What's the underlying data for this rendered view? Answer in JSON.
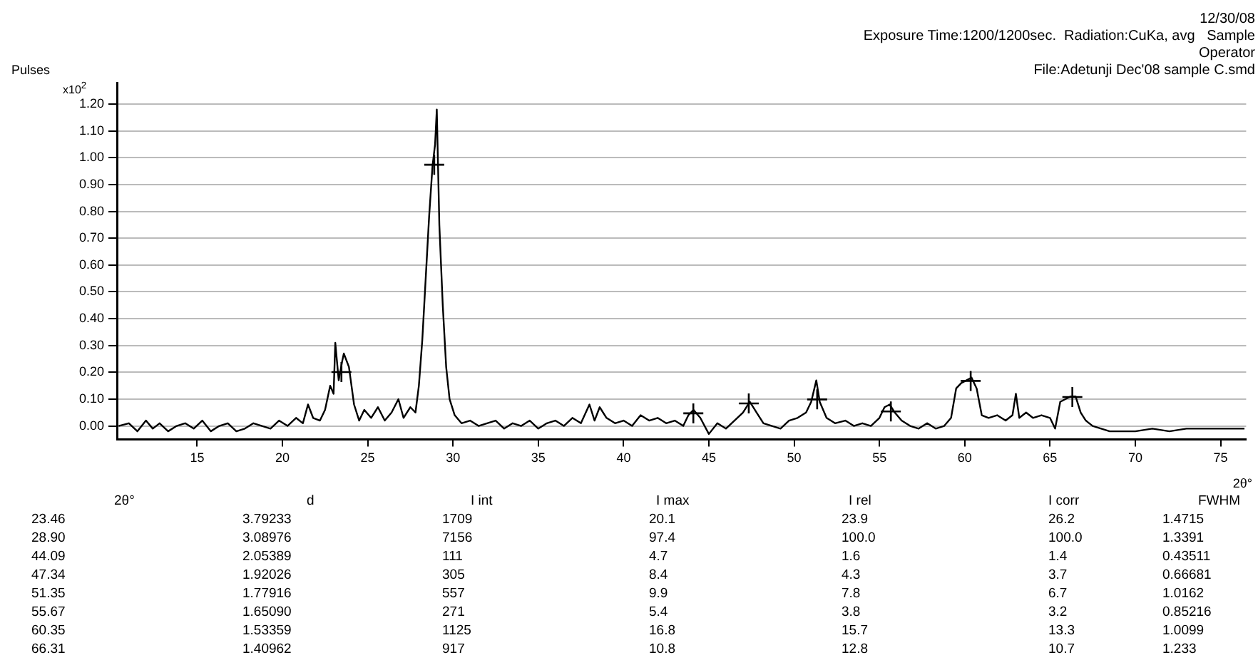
{
  "chart_data": {
    "type": "line",
    "title": "12/30/08",
    "subtitle": "Exposure Time:1200/1200sec.  Radiation:CuKa, avg   Sample\nOperator\nFile:Adetunji Dec'08 sample C.smd",
    "xlabel": "2θ°",
    "ylabel": "Pulses",
    "annotations": [
      "x10$^{2}$",
      "2θ°",
      "d",
      "I int",
      "I max",
      "I rel",
      "I corr",
      "FWHM",
      "23.46",
      "3.79233",
      "1709",
      "20.1",
      "23.9",
      "26.2",
      "1.4715",
      "28.90",
      "3.08976",
      "7156",
      "97.4",
      "100.0",
      "100.0",
      "1.3391",
      "44.09",
      "2.05389",
      "111",
      "4.7",
      "1.6",
      "1.4",
      "0.43511",
      "47.34",
      "1.92026",
      "305",
      "8.4",
      "4.3",
      "3.7",
      "0.66681",
      "51.35",
      "1.77916",
      "557",
      "9.9",
      "7.8",
      "6.7",
      "1.0162",
      "55.67",
      "1.65090",
      "271",
      "5.4",
      "3.8",
      "3.2",
      "0.85216",
      "60.35",
      "1.53359",
      "1125",
      "16.8",
      "15.7",
      "13.3",
      "1.0099",
      "66.31",
      "1.40962",
      "917",
      "10.8",
      "12.8",
      "10.7",
      "1.233"
    ],
    "xlim": [
      10.3,
      76.5
    ],
    "xticks": [
      15,
      20,
      25,
      30,
      35,
      40,
      45,
      50,
      55,
      60,
      65,
      70,
      75
    ],
    "ylim": [
      -0.05,
      1.28
    ],
    "yticks": [
      {
        "value": 0,
        "label": "0.00"
      },
      {
        "value": 0.1,
        "label": "0.10"
      },
      {
        "value": 0.2,
        "label": "0.20"
      },
      {
        "value": 0.3,
        "label": "0.30"
      },
      {
        "value": 0.4,
        "label": "0.40"
      },
      {
        "value": 0.5,
        "label": "0.50"
      },
      {
        "value": 0.6,
        "label": "0.60"
      },
      {
        "value": 0.7,
        "label": "0.70"
      },
      {
        "value": 0.8,
        "label": "0.80"
      },
      {
        "value": 0.9,
        "label": "0.90"
      },
      {
        "value": 1.0,
        "label": "1.00"
      },
      {
        "value": 1.1,
        "label": "1.10"
      },
      {
        "value": 1.2,
        "label": "1.20"
      }
    ],
    "grid": "y",
    "legend": false,
    "series": [
      {
        "color": "#000000",
        "marker": "none",
        "x": [
          10.4,
          11,
          11.5,
          12,
          12.4,
          12.8,
          13.3,
          13.8,
          14.3,
          14.8,
          15.3,
          15.8,
          16.3,
          16.8,
          17.3,
          17.8,
          18.3,
          18.8,
          19.3,
          19.8,
          20.3,
          20.8,
          21.2,
          21.5,
          21.8,
          22.2,
          22.5,
          22.8,
          23.0,
          23.1,
          23.3,
          23.5,
          23.6,
          23.9,
          24.2,
          24.5,
          24.8,
          25.2,
          25.6,
          26.0,
          26.4,
          26.8,
          27.1,
          27.5,
          27.8,
          28.0,
          28.2,
          28.4,
          28.6,
          28.8,
          28.95,
          29.05,
          29.2,
          29.4,
          29.6,
          29.8,
          30.1,
          30.5,
          31,
          31.5,
          32,
          32.5,
          33,
          33.5,
          34,
          34.5,
          35,
          35.5,
          36,
          36.5,
          37,
          37.5,
          38,
          38.3,
          38.6,
          39,
          39.5,
          40,
          40.5,
          41,
          41.5,
          42,
          42.5,
          43,
          43.5,
          43.8,
          44.1,
          44.5,
          45,
          45.5,
          46,
          46.5,
          47,
          47.4,
          47.8,
          48.2,
          48.7,
          49.2,
          49.7,
          50.2,
          50.7,
          51,
          51.3,
          51.5,
          51.9,
          52.4,
          53,
          53.5,
          54,
          54.5,
          55,
          55.3,
          55.6,
          55.9,
          56.3,
          56.8,
          57.3,
          57.8,
          58.3,
          58.8,
          59.2,
          59.5,
          59.8,
          60.1,
          60.4,
          60.7,
          61,
          61.4,
          61.9,
          62.4,
          62.8,
          63.0,
          63.2,
          63.6,
          64,
          64.5,
          65,
          65.3,
          65.6,
          65.9,
          66.2,
          66.5,
          66.8,
          67.1,
          67.5,
          68,
          68.5,
          69,
          70,
          71,
          72,
          73,
          74,
          75,
          76.4
        ],
        "values": [
          0.0,
          0.01,
          -0.02,
          0.02,
          -0.01,
          0.01,
          -0.02,
          0.0,
          0.01,
          -0.01,
          0.02,
          -0.02,
          0.0,
          0.01,
          -0.02,
          -0.01,
          0.01,
          0.0,
          -0.01,
          0.02,
          0.0,
          0.03,
          0.01,
          0.08,
          0.03,
          0.02,
          0.06,
          0.15,
          0.12,
          0.31,
          0.17,
          0.24,
          0.27,
          0.22,
          0.08,
          0.02,
          0.06,
          0.03,
          0.07,
          0.02,
          0.05,
          0.1,
          0.03,
          0.07,
          0.05,
          0.15,
          0.32,
          0.55,
          0.78,
          0.97,
          1.05,
          1.18,
          0.75,
          0.45,
          0.22,
          0.1,
          0.04,
          0.01,
          0.02,
          0.0,
          0.01,
          0.02,
          -0.01,
          0.01,
          0.0,
          0.02,
          -0.01,
          0.01,
          0.02,
          0.0,
          0.03,
          0.01,
          0.08,
          0.02,
          0.07,
          0.03,
          0.01,
          0.02,
          0.0,
          0.04,
          0.02,
          0.03,
          0.01,
          0.02,
          0.0,
          0.04,
          0.06,
          0.03,
          -0.03,
          0.01,
          -0.01,
          0.02,
          0.05,
          0.09,
          0.05,
          0.01,
          0.0,
          -0.01,
          0.02,
          0.03,
          0.05,
          0.09,
          0.17,
          0.09,
          0.03,
          0.01,
          0.02,
          0.0,
          0.01,
          0.0,
          0.03,
          0.07,
          0.08,
          0.05,
          0.02,
          0.0,
          -0.01,
          0.01,
          -0.01,
          0.0,
          0.03,
          0.14,
          0.16,
          0.17,
          0.18,
          0.14,
          0.04,
          0.03,
          0.04,
          0.02,
          0.04,
          0.12,
          0.03,
          0.05,
          0.03,
          0.04,
          0.03,
          -0.01,
          0.09,
          0.1,
          0.11,
          0.11,
          0.05,
          0.02,
          0.0,
          -0.01,
          -0.02,
          -0.02,
          -0.02,
          -0.01,
          -0.02,
          -0.01,
          -0.01,
          -0.01,
          -0.01
        ]
      },
      {
        "type": "scatter",
        "color": "#000000",
        "marker": "cross",
        "x": [
          23.46,
          28.9,
          44.09,
          47.34,
          51.35,
          55.67,
          60.35,
          66.31
        ],
        "values": [
          0.201,
          0.974,
          0.047,
          0.084,
          0.099,
          0.054,
          0.168,
          0.108
        ]
      }
    ]
  }
}
